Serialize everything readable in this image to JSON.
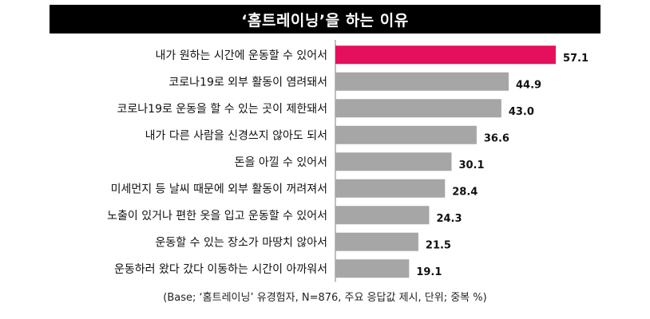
{
  "title": "‘홈트레이닝’을 하는 이유",
  "footnote": "(Base; ‘홈트레이닝’ 유경험자, N=876, 주요 응답값 제시, 단위; 중복 %)",
  "colors": {
    "highlight": "#e5105d",
    "bar": "#a6a6a6",
    "axis": "#7f7f7f",
    "title_bg": "#000000"
  },
  "chart_data": {
    "type": "bar",
    "orientation": "horizontal",
    "title": "‘홈트레이닝’을 하는 이유",
    "categories": [
      "내가 원하는 시간에 운동할 수 있어서",
      "코로나19로 외부 활동이 염려돼서",
      "코로나19로 운동을 할 수 있는 곳이 제한돼서",
      "내가 다른 사람을 신경쓰지 않아도 되서",
      "돈을 아낄 수 있어서",
      "미세먼지 등 날씨 때문에 외부 활동이 꺼려져서",
      "노출이 있거나 편한 옷을 입고 운동할 수 있어서",
      "운동할 수 있는 장소가 마땅치 않아서",
      "운동하러 왔다 갔다 이동하는 시간이 아까워서"
    ],
    "values": [
      57.1,
      44.9,
      43.0,
      36.6,
      30.1,
      28.4,
      24.3,
      21.5,
      19.1
    ],
    "value_labels": [
      "57.1",
      "44.9",
      "43.0",
      "36.6",
      "30.1",
      "28.4",
      "24.3",
      "21.5",
      "19.1"
    ],
    "highlight_index": 0,
    "xlim": [
      0,
      60
    ],
    "grid": false,
    "legend": "none"
  }
}
